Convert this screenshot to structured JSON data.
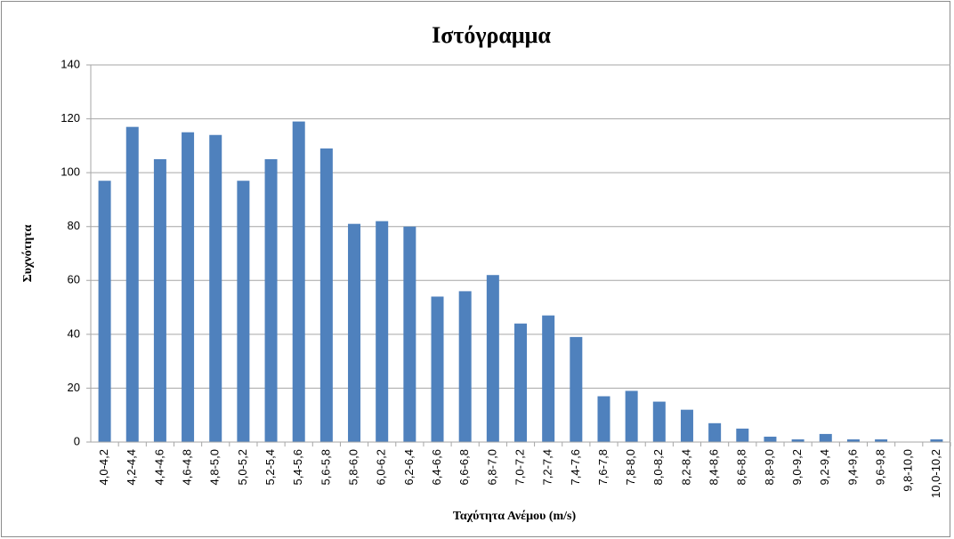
{
  "chart_data": {
    "type": "bar",
    "title": "Ιστόγραμμα",
    "x_label": "Ταχύτητα Ανέμου (m/s)",
    "y_label": "Συχνότητα",
    "categories": [
      "4,0-4,2",
      "4,2-4,4",
      "4,4-4,6",
      "4,6-4,8",
      "4,8-5,0",
      "5,0-5,2",
      "5,2-5,4",
      "5,4-5,6",
      "5,6-5,8",
      "5,8-6,0",
      "6,0-6,2",
      "6,2-6,4",
      "6,4-6,6",
      "6,6-6,8",
      "6,8-7,0",
      "7,0-7,2",
      "7,2-7,4",
      "7,4-7,6",
      "7,6-7,8",
      "7,8-8,0",
      "8,0-8,2",
      "8,2-8,4",
      "8,4-8,6",
      "8,6-8,8",
      "8,8-9,0",
      "9,0-9,2",
      "9,2-9,4",
      "9,4-9,6",
      "9,6-9,8",
      "9,8-10,0",
      "10,0-10,2"
    ],
    "values": [
      97,
      117,
      105,
      115,
      114,
      97,
      105,
      119,
      109,
      81,
      82,
      80,
      54,
      56,
      62,
      44,
      47,
      39,
      17,
      19,
      15,
      12,
      7,
      5,
      2,
      1,
      3,
      1,
      1,
      0,
      1
    ],
    "color": "#4f81bd",
    "ylim": [
      0,
      140
    ],
    "yticks": [
      0,
      20,
      40,
      60,
      80,
      100,
      120,
      140
    ],
    "grid": true
  }
}
